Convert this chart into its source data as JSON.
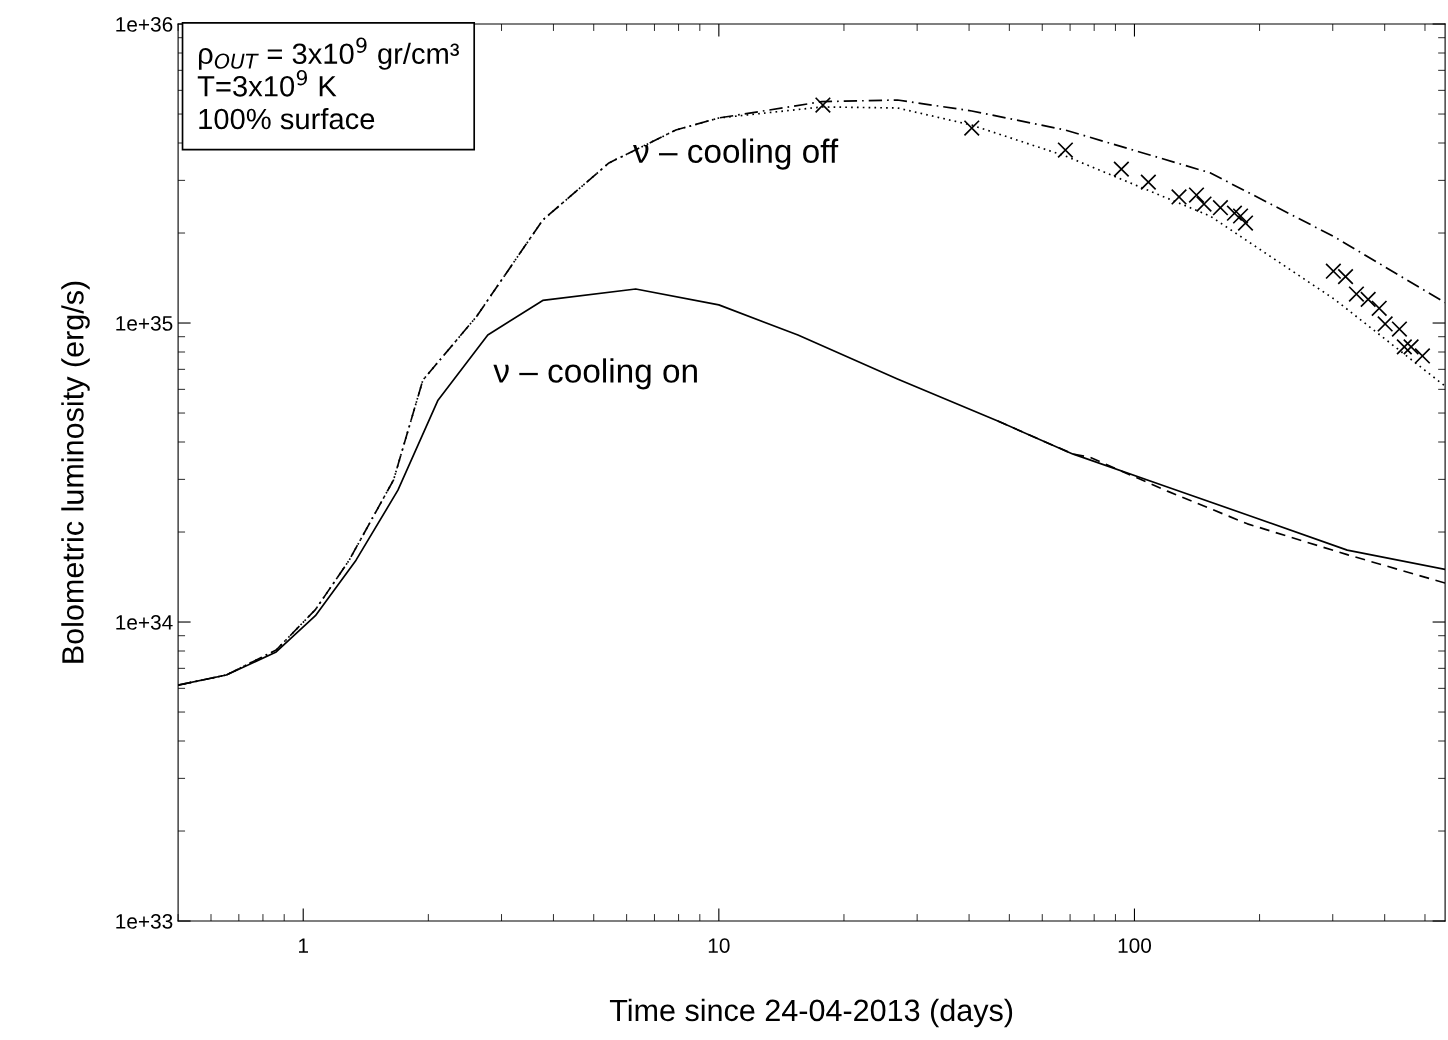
{
  "chart_data": {
    "type": "line",
    "xlabel": "Time since 24-04-2013 (days)",
    "ylabel": "Bolometric luminosity (erg/s)",
    "log": "xy",
    "xlim": [
      0.5,
      559
    ],
    "ylim": [
      1e+33,
      1e+36
    ],
    "xticks": [
      1,
      10,
      100
    ],
    "yticks": [
      {
        "value": 1e+33,
        "label": "1e+33"
      },
      {
        "value": 1e+34,
        "label": "1e+34"
      },
      {
        "value": 1e+35,
        "label": "1e+35"
      },
      {
        "value": 1e+36,
        "label": "1e+36"
      }
    ],
    "grid": false,
    "legend": false,
    "series": [
      {
        "color": "#000000",
        "line_style": "dashdot",
        "x": [
          0.5,
          0.653,
          0.861,
          1.07,
          1.29,
          1.65,
          1.94,
          2.61,
          3.77,
          5.44,
          7.88,
          10,
          17.7,
          26.9,
          40.6,
          68.2,
          152,
          303,
          559
        ],
        "values": [
          6.15e+33,
          6.65e+33,
          8.06e+33,
          1.1e+34,
          1.61e+34,
          2.99e+34,
          6.44e+34,
          1.05e+35,
          2.21e+35,
          3.43e+35,
          4.42e+35,
          4.85e+35,
          5.5e+35,
          5.57e+35,
          5.12e+35,
          4.42e+35,
          3.18e+35,
          1.94e+35,
          1.17e+35
        ]
      },
      {
        "color": "#000000",
        "line_style": "dotted",
        "x": [
          0.5,
          0.653,
          0.861,
          1.07,
          1.29,
          1.65,
          1.94,
          2.61,
          3.77,
          5.44,
          7.88,
          10,
          17.7,
          26.9,
          40.6,
          68.2,
          152,
          303,
          559
        ],
        "values": [
          6.15e+33,
          6.65e+33,
          8.06e+33,
          1.1e+34,
          1.61e+34,
          2.99e+34,
          6.44e+34,
          1.05e+35,
          2.21e+35,
          3.43e+35,
          4.42e+35,
          4.85e+35,
          5.28e+35,
          5.24e+35,
          4.59e+35,
          3.62e+35,
          2.28e+35,
          1.2e+35,
          6.15e+34
        ]
      },
      {
        "color": "#000000",
        "line_style": "solid",
        "x": [
          0.5,
          0.653,
          0.861,
          1.07,
          1.34,
          1.69,
          2.11,
          2.78,
          3.77,
          6.31,
          10,
          15.5,
          26.9,
          46.9,
          71,
          120,
          187,
          325,
          559
        ],
        "values": [
          6.15e+33,
          6.65e+33,
          7.94e+33,
          1.05e+34,
          1.61e+34,
          2.76e+34,
          5.52e+34,
          9.12e+34,
          1.19e+35,
          1.3e+35,
          1.15e+35,
          9.12e+34,
          6.5e+34,
          4.7e+34,
          3.65e+34,
          2.83e+34,
          2.28e+34,
          1.74e+34,
          1.5e+34
        ]
      },
      {
        "color": "#000000",
        "line_style": "dashed",
        "x": [
          46.9,
          71,
          78,
          120,
          187,
          325,
          559
        ],
        "values": [
          4.7e+34,
          3.65e+34,
          3.56e+34,
          2.74e+34,
          2.13e+34,
          1.68e+34,
          1.35e+34
        ]
      },
      {
        "type": "scatter",
        "color": "#000000",
        "marker": "cross",
        "x": [
          17.8,
          40.6,
          68.2,
          93,
          108,
          128,
          141,
          147,
          161,
          174,
          180,
          185,
          301,
          322,
          342,
          365,
          388,
          401,
          434,
          446,
          463,
          493
        ],
        "values": [
          5.36e+35,
          4.49e+35,
          3.79e+35,
          3.27e+35,
          2.96e+35,
          2.64e+35,
          2.68e+35,
          2.5e+35,
          2.43e+35,
          2.33e+35,
          2.28e+35,
          2.16e+35,
          1.49e+35,
          1.43e+35,
          1.25e+35,
          1.2e+35,
          1.12e+35,
          9.93e+34,
          9.55e+34,
          8.32e+34,
          8.32e+34,
          7.76e+34
        ]
      }
    ],
    "annotations": [
      "ρ$_{OUT}$ = 3x10$^{9}$ gr/cm³\nT=3x10$^{9}$ K\n100% surface",
      "ν – cooling off",
      "ν – cooling on"
    ]
  }
}
